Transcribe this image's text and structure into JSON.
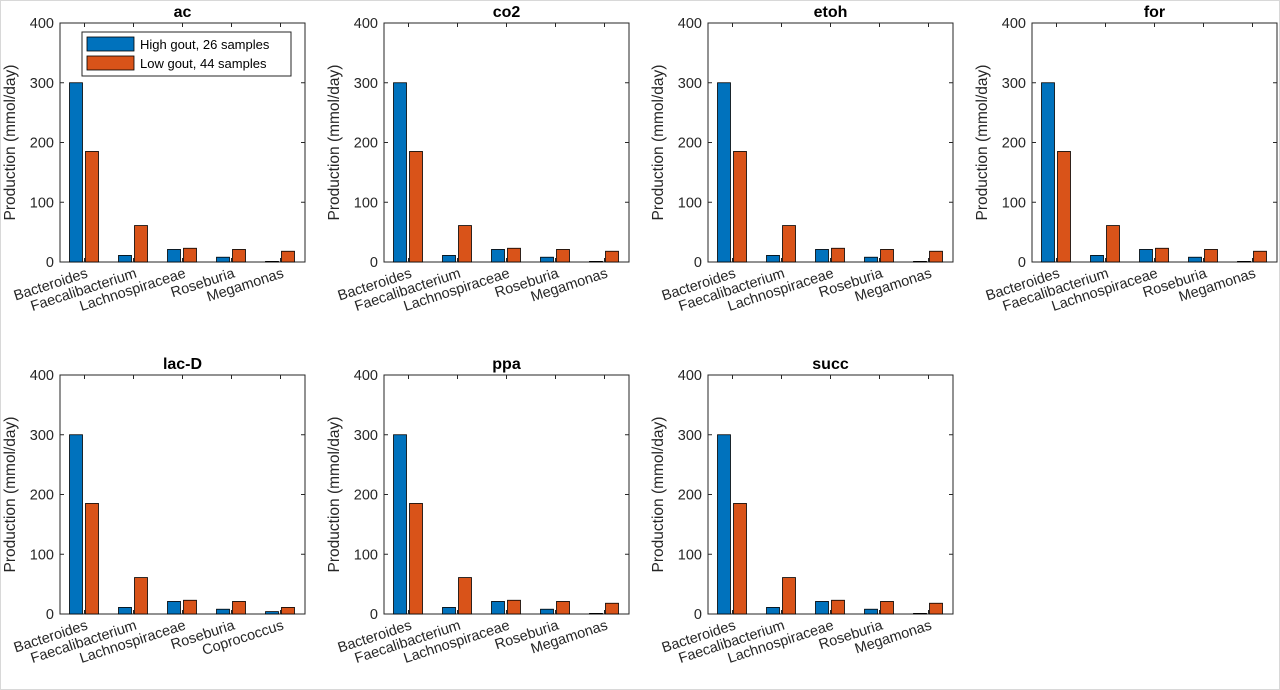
{
  "chart_data": [
    {
      "type": "bar",
      "title": "ac",
      "ylabel": "Production (mmol/day)",
      "ylim": [
        0,
        400
      ],
      "yticks": [
        0,
        100,
        200,
        300,
        400
      ],
      "categories": [
        "Bacteroides",
        "Faecalibacterium",
        "Lachnospiraceae",
        "Roseburia",
        "Megamonas"
      ],
      "series": [
        {
          "name": "High gout, 26 samples",
          "color": "#0072BD",
          "values": [
            300,
            11,
            21,
            8,
            1
          ]
        },
        {
          "name": "Low gout, 44 samples",
          "color": "#D95319",
          "values": [
            185,
            61,
            23,
            21,
            18
          ]
        }
      ],
      "legend": "top-right"
    },
    {
      "type": "bar",
      "title": "co2",
      "ylabel": "Production (mmol/day)",
      "ylim": [
        0,
        400
      ],
      "yticks": [
        0,
        100,
        200,
        300,
        400
      ],
      "categories": [
        "Bacteroides",
        "Faecalibacterium",
        "Lachnospiraceae",
        "Roseburia",
        "Megamonas"
      ],
      "series": [
        {
          "color": "#0072BD",
          "values": [
            300,
            11,
            21,
            8,
            1
          ]
        },
        {
          "color": "#D95319",
          "values": [
            185,
            61,
            23,
            21,
            18
          ]
        }
      ]
    },
    {
      "type": "bar",
      "title": "etoh",
      "ylabel": "Production (mmol/day)",
      "ylim": [
        0,
        400
      ],
      "yticks": [
        0,
        100,
        200,
        300,
        400
      ],
      "categories": [
        "Bacteroides",
        "Faecalibacterium",
        "Lachnospiraceae",
        "Roseburia",
        "Megamonas"
      ],
      "series": [
        {
          "color": "#0072BD",
          "values": [
            300,
            11,
            21,
            8,
            1
          ]
        },
        {
          "color": "#D95319",
          "values": [
            185,
            61,
            23,
            21,
            18
          ]
        }
      ]
    },
    {
      "type": "bar",
      "title": "for",
      "ylabel": "Production (mmol/day)",
      "ylim": [
        0,
        400
      ],
      "yticks": [
        0,
        100,
        200,
        300,
        400
      ],
      "categories": [
        "Bacteroides",
        "Faecalibacterium",
        "Lachnospiraceae",
        "Roseburia",
        "Megamonas"
      ],
      "series": [
        {
          "color": "#0072BD",
          "values": [
            300,
            11,
            21,
            8,
            1
          ]
        },
        {
          "color": "#D95319",
          "values": [
            185,
            61,
            23,
            21,
            18
          ]
        }
      ]
    },
    {
      "type": "bar",
      "title": "lac-D",
      "ylabel": "Production (mmol/day)",
      "ylim": [
        0,
        400
      ],
      "yticks": [
        0,
        100,
        200,
        300,
        400
      ],
      "categories": [
        "Bacteroides",
        "Faecalibacterium",
        "Lachnospiraceae",
        "Roseburia",
        "Coprococcus"
      ],
      "series": [
        {
          "color": "#0072BD",
          "values": [
            300,
            11,
            21,
            8,
            4
          ]
        },
        {
          "color": "#D95319",
          "values": [
            185,
            61,
            23,
            21,
            11
          ]
        }
      ]
    },
    {
      "type": "bar",
      "title": "ppa",
      "ylabel": "Production (mmol/day)",
      "ylim": [
        0,
        400
      ],
      "yticks": [
        0,
        100,
        200,
        300,
        400
      ],
      "categories": [
        "Bacteroides",
        "Faecalibacterium",
        "Lachnospiraceae",
        "Roseburia",
        "Megamonas"
      ],
      "series": [
        {
          "color": "#0072BD",
          "values": [
            300,
            11,
            21,
            8,
            1
          ]
        },
        {
          "color": "#D95319",
          "values": [
            185,
            61,
            23,
            21,
            18
          ]
        }
      ]
    },
    {
      "type": "bar",
      "title": "succ",
      "ylabel": "Production (mmol/day)",
      "ylim": [
        0,
        400
      ],
      "yticks": [
        0,
        100,
        200,
        300,
        400
      ],
      "categories": [
        "Bacteroides",
        "Faecalibacterium",
        "Lachnospiraceae",
        "Roseburia",
        "Megamonas"
      ],
      "series": [
        {
          "color": "#0072BD",
          "values": [
            300,
            11,
            21,
            8,
            1
          ]
        },
        {
          "color": "#D95319",
          "values": [
            185,
            61,
            23,
            21,
            18
          ]
        }
      ]
    }
  ]
}
